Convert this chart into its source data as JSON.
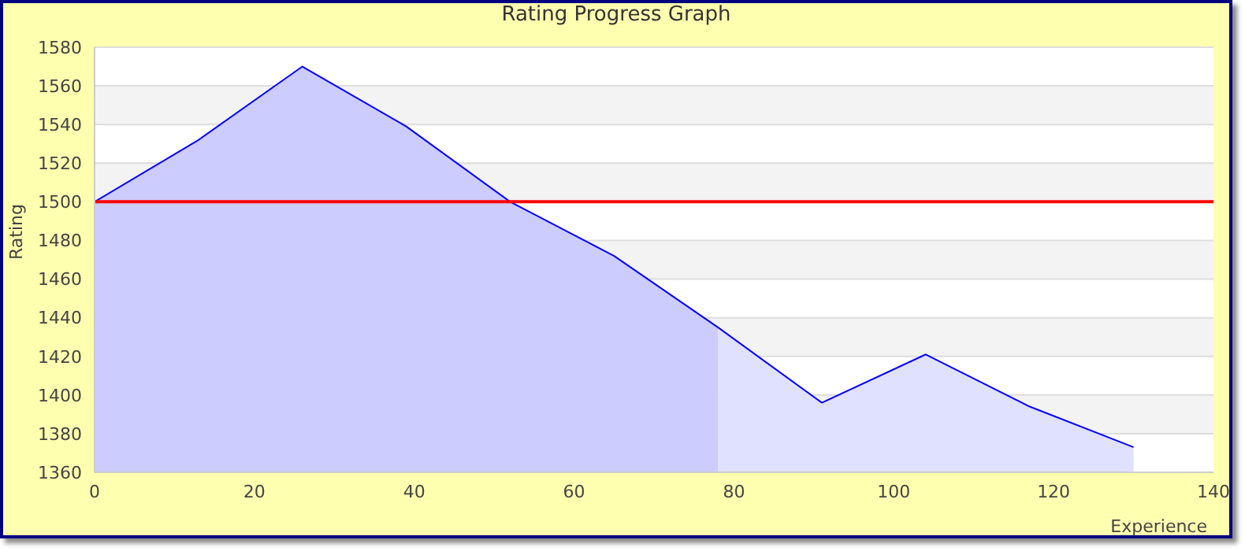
{
  "chart_data": {
    "type": "area",
    "title": "Rating Progress Graph",
    "xlabel": "Experience",
    "ylabel": "Rating",
    "xlim": [
      0,
      140
    ],
    "xticks": [
      0,
      20,
      40,
      60,
      80,
      100,
      120,
      140
    ],
    "ylim": [
      1360,
      1580
    ],
    "yticks": [
      1360,
      1380,
      1400,
      1420,
      1440,
      1460,
      1480,
      1500,
      1520,
      1540,
      1560,
      1580
    ],
    "grid": "y",
    "series": [
      {
        "color": "#ccccff",
        "x": [
          0,
          13,
          26,
          39,
          52,
          65,
          78
        ],
        "values": [
          1500,
          1532,
          1570,
          1539,
          1500,
          1472,
          1435
        ]
      },
      {
        "color": "#e0e0ff",
        "x": [
          78,
          91,
          104,
          117,
          130
        ],
        "values": [
          1435,
          1396,
          1421,
          1394,
          1373
        ]
      },
      {
        "type": "line",
        "color": "#0000ff",
        "x": [
          0,
          13,
          26,
          39,
          52,
          65,
          78,
          91,
          104,
          117,
          130
        ],
        "values": [
          1500,
          1532,
          1570,
          1539,
          1500,
          1472,
          1435,
          1396,
          1421,
          1394,
          1373
        ]
      }
    ],
    "ref_lines": [
      {
        "axis": "y",
        "value": 1500,
        "color": "#ff0000"
      }
    ]
  }
}
